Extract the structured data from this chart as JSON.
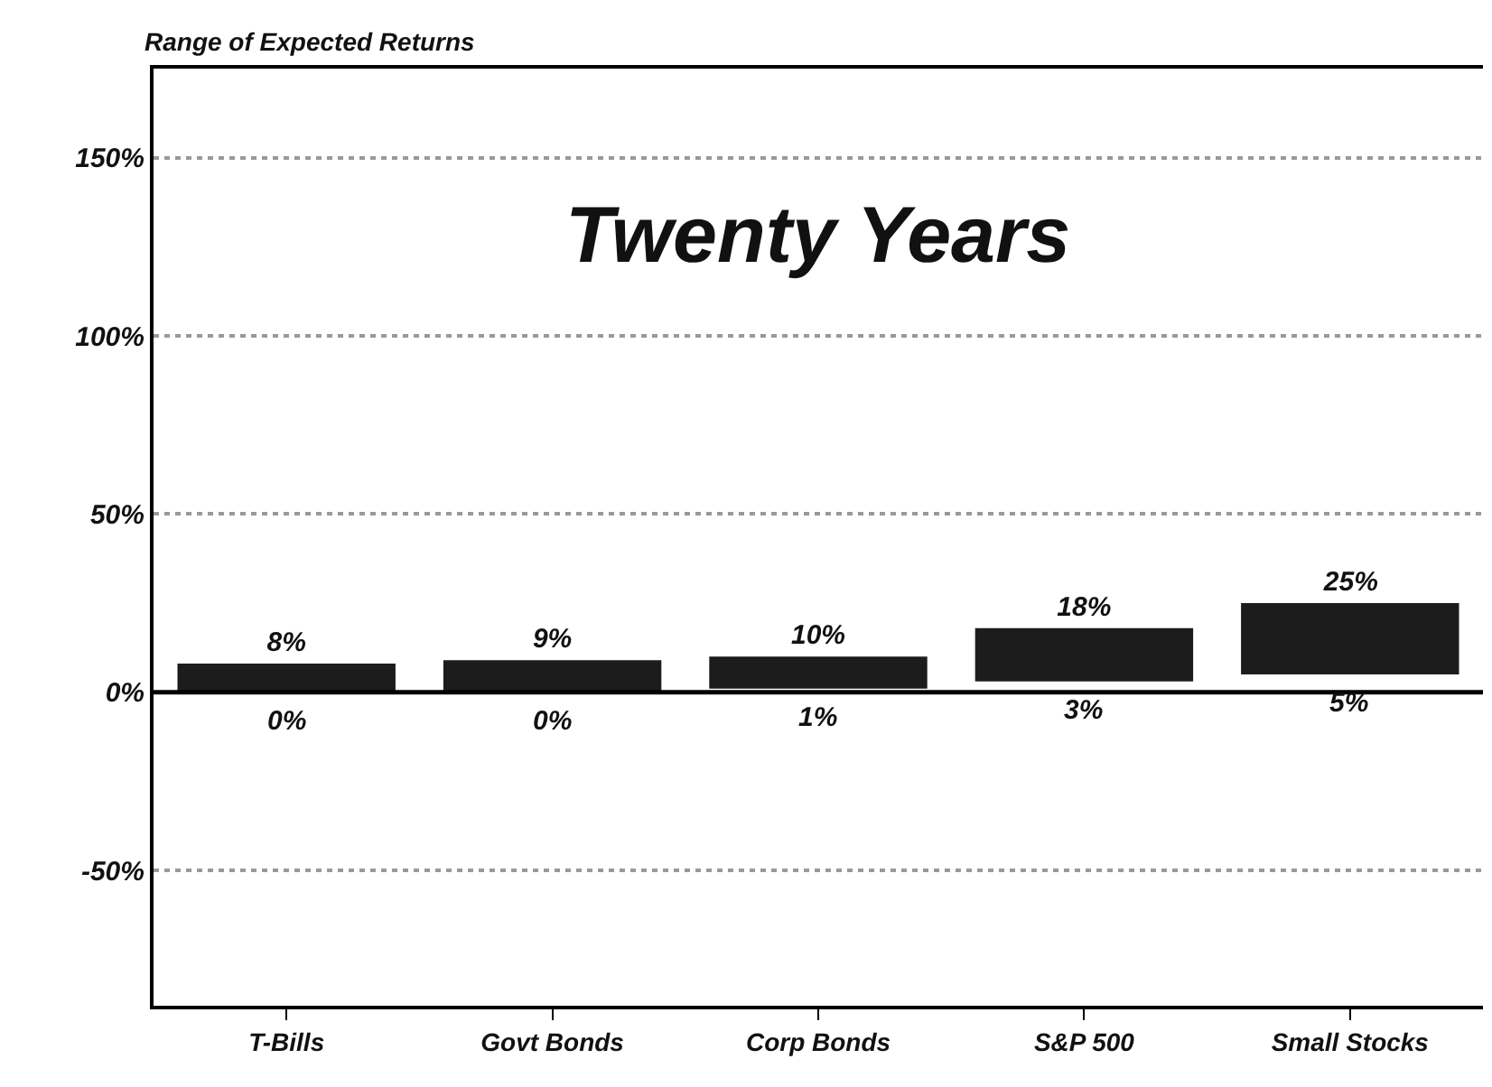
{
  "chart_data": {
    "type": "bar",
    "title": "Range of Expected Returns",
    "subtitle": "Twenty Years",
    "categories": [
      "T-Bills",
      "Govt Bonds",
      "Corp Bonds",
      "S&P 500",
      "Small Stocks"
    ],
    "base": [
      0,
      0,
      1,
      3,
      5
    ],
    "values": [
      8,
      9,
      9,
      15,
      20
    ],
    "value_labels": [
      "8%",
      "9%",
      "10%",
      "18%",
      "25%"
    ],
    "color": "#1c1c1c",
    "annotations": [
      {
        "text": "0%",
        "x": "T-Bills",
        "y": 0
      },
      {
        "text": "0%",
        "x": "Govt Bonds",
        "y": 0
      },
      {
        "text": "1%",
        "x": "Corp Bonds",
        "y": 1
      },
      {
        "text": "3%",
        "x": "S&P 500",
        "y": 3
      },
      {
        "text": "5%",
        "x": "Small Stocks",
        "y": 5
      }
    ],
    "ref_lines": [
      {
        "axis": "y",
        "value": 0,
        "color": "#000000"
      }
    ],
    "ylim": [
      -88,
      175
    ],
    "yticks": [
      {
        "value": -50,
        "label": "-50%"
      },
      {
        "value": 0,
        "label": "0%"
      },
      {
        "value": 50,
        "label": "50%"
      },
      {
        "value": 100,
        "label": "100%"
      },
      {
        "value": 150,
        "label": "150%"
      }
    ],
    "grid": "y",
    "legend": false
  }
}
